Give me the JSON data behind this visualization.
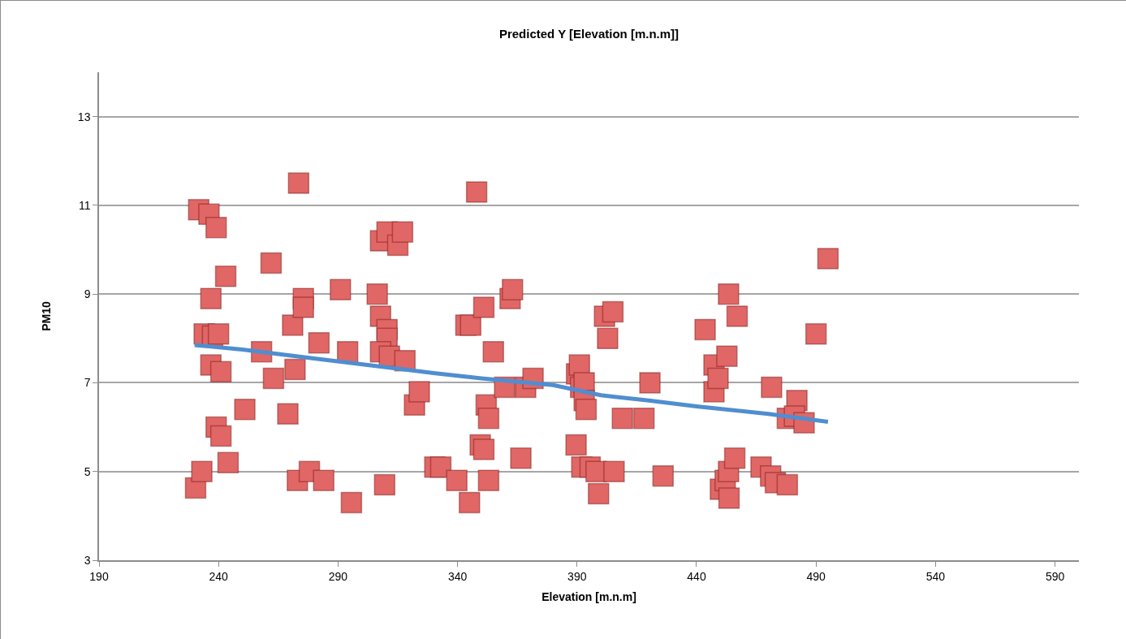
{
  "chart_data": {
    "type": "scatter",
    "title": "Predicted Y [Elevation [m.n.m]]",
    "xlabel": "Elevation [m.n.m]",
    "ylabel": "PM10",
    "xlim": [
      190,
      600
    ],
    "xticks": [
      190,
      240,
      290,
      340,
      390,
      440,
      490,
      540,
      590
    ],
    "ylim": [
      3,
      14
    ],
    "yticks": [
      3,
      5,
      7,
      9,
      11,
      13
    ],
    "grid": "y",
    "legend": false,
    "marker": "square",
    "series": [
      {
        "color": "#e06765",
        "x": [
          230.4,
          233,
          231.7,
          236,
          239,
          243,
          234,
          236.8,
          236.8,
          237.5,
          240,
          241,
          239,
          241,
          244,
          251,
          258,
          262,
          263,
          269,
          271,
          272,
          273.5,
          275.5,
          275.5,
          273,
          278,
          282,
          284,
          291,
          294,
          295.6,
          306.4,
          307.8,
          310.5,
          310.5,
          307.8,
          311.5,
          307.8,
          310.5,
          315,
          317,
          318,
          322,
          324,
          309.5,
          330.5,
          333,
          339.7,
          345,
          343.5,
          345.5,
          348,
          349.5,
          351,
          351,
          352,
          353,
          353,
          355,
          359.7,
          362,
          363,
          366.5,
          368.5,
          371.6,
          389.6,
          389.8,
          391,
          391.5,
          393,
          393,
          393.8,
          392,
          395.5,
          398,
          399,
          401.5,
          405,
          402.8,
          405.5,
          409,
          418,
          420.5,
          426,
          443.6,
          447.3,
          447.3,
          449,
          452.7,
          453.4,
          457,
          450,
          452,
          453.4,
          453.6,
          456,
          467,
          471,
          473,
          478,
          471.4,
          478,
          482,
          481,
          485,
          490,
          495
        ],
        "values": [
          4.63,
          5.0,
          10.9,
          10.8,
          10.5,
          9.4,
          8.1,
          7.4,
          8.9,
          8.05,
          8.1,
          7.25,
          6.0,
          5.8,
          5.2,
          6.4,
          7.7,
          9.7,
          7.1,
          6.3,
          8.3,
          7.3,
          11.5,
          8.9,
          8.7,
          4.8,
          5.0,
          7.9,
          4.8,
          9.1,
          7.7,
          4.3,
          9.0,
          8.5,
          8.2,
          8.0,
          7.7,
          7.6,
          10.2,
          10.4,
          10.1,
          10.4,
          7.5,
          6.5,
          6.8,
          4.7,
          5.1,
          5.1,
          4.8,
          4.3,
          8.3,
          8.3,
          11.3,
          5.6,
          5.5,
          8.7,
          6.5,
          6.2,
          4.8,
          7.7,
          6.9,
          8.9,
          9.1,
          5.3,
          6.9,
          7.1,
          5.6,
          7.2,
          7.4,
          6.9,
          7.0,
          6.6,
          6.4,
          5.1,
          5.1,
          5.0,
          4.5,
          8.5,
          8.6,
          8.0,
          5.0,
          6.2,
          6.2,
          7.0,
          4.9,
          8.2,
          7.4,
          6.8,
          7.1,
          7.6,
          9.0,
          8.5,
          4.6,
          4.8,
          5.0,
          4.4,
          5.3,
          5.1,
          4.9,
          4.75,
          4.7,
          6.9,
          6.2,
          6.6,
          6.25,
          6.1,
          8.1,
          9.8
        ]
      },
      {
        "type": "line",
        "color": "#4f8ed0",
        "marker": "none",
        "x": [
          230,
          250,
          280,
          310,
          330,
          350,
          380,
          400,
          420,
          440,
          470,
          495
        ],
        "values": [
          7.85,
          7.75,
          7.55,
          7.35,
          7.22,
          7.1,
          6.95,
          6.72,
          6.6,
          6.47,
          6.3,
          6.12
        ]
      }
    ]
  }
}
